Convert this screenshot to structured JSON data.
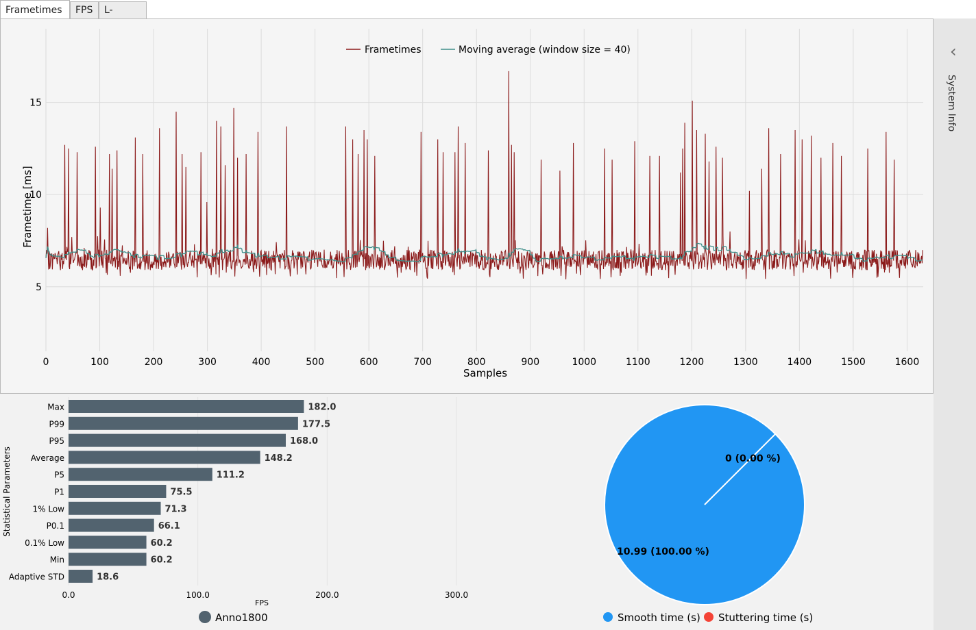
{
  "tabs": [
    {
      "label": "Frametimes",
      "active": true
    },
    {
      "label": "FPS",
      "active": false
    },
    {
      "label": "L-shape",
      "active": false
    }
  ],
  "sidebar": {
    "chevron": "‹",
    "label": "System Info"
  },
  "colors": {
    "frametimes": "#8b1a1a",
    "moving_avg": "#3f8f8a",
    "bar": "#52636f",
    "smooth": "#2196f3",
    "stutter": "#f44336"
  },
  "chart_data": [
    {
      "type": "line",
      "title": "",
      "xlabel": "Samples",
      "ylabel": "Frametime [ms]",
      "xlim": [
        0,
        1630
      ],
      "ylim": [
        1.5,
        19
      ],
      "xticks": [
        0,
        100,
        200,
        300,
        400,
        500,
        600,
        700,
        800,
        900,
        1000,
        1100,
        1200,
        1300,
        1400,
        1500,
        1600
      ],
      "yticks": [
        5,
        10,
        15
      ],
      "grid": true,
      "legend": {
        "position": "top-center",
        "entries": [
          "Frametimes",
          "Moving average (window size = 40)"
        ]
      },
      "series": [
        {
          "name": "Frametimes",
          "baseline": 6.4,
          "noise": 0.55,
          "min": 5.4,
          "spikes": [
            [
              3,
              8.2
            ],
            [
              35,
              12.7
            ],
            [
              42,
              12.5
            ],
            [
              48,
              7.7
            ],
            [
              58,
              12.3
            ],
            [
              92,
              12.6
            ],
            [
              101,
              9.3
            ],
            [
              118,
              12.2
            ],
            [
              123,
              11.4
            ],
            [
              132,
              12.4
            ],
            [
              166,
              13.1
            ],
            [
              180,
              12.2
            ],
            [
              211,
              13.6
            ],
            [
              242,
              14.5
            ],
            [
              253,
              12.2
            ],
            [
              260,
              11.5
            ],
            [
              288,
              12.3
            ],
            [
              299,
              9.6
            ],
            [
              317,
              14.0
            ],
            [
              325,
              13.7
            ],
            [
              333,
              11.6
            ],
            [
              349,
              14.7
            ],
            [
              356,
              12.0
            ],
            [
              372,
              12.2
            ],
            [
              394,
              13.4
            ],
            [
              447,
              13.7
            ],
            [
              557,
              13.7
            ],
            [
              570,
              13.0
            ],
            [
              580,
              12.2
            ],
            [
              591,
              13.5
            ],
            [
              597,
              13.0
            ],
            [
              611,
              12.1
            ],
            [
              648,
              7.2
            ],
            [
              697,
              13.4
            ],
            [
              728,
              13.0
            ],
            [
              738,
              12.3
            ],
            [
              760,
              12.3
            ],
            [
              766,
              13.7
            ],
            [
              779,
              12.8
            ],
            [
              822,
              12.4
            ],
            [
              860,
              16.7
            ],
            [
              865,
              12.7
            ],
            [
              870,
              12.3
            ],
            [
              920,
              11.9
            ],
            [
              955,
              11.3
            ],
            [
              980,
              12.8
            ],
            [
              1038,
              12.5
            ],
            [
              1052,
              11.9
            ],
            [
              1094,
              12.9
            ],
            [
              1122,
              12.1
            ],
            [
              1140,
              12.1
            ],
            [
              1179,
              11.2
            ],
            [
              1183,
              12.5
            ],
            [
              1187,
              13.9
            ],
            [
              1201,
              15.1
            ],
            [
              1209,
              13.5
            ],
            [
              1225,
              13.3
            ],
            [
              1232,
              11.8
            ],
            [
              1245,
              12.6
            ],
            [
              1257,
              12.0
            ],
            [
              1271,
              8.0
            ],
            [
              1307,
              10.2
            ],
            [
              1330,
              11.4
            ],
            [
              1343,
              13.6
            ],
            [
              1365,
              12.2
            ],
            [
              1392,
              13.5
            ],
            [
              1405,
              13.0
            ],
            [
              1422,
              13.2
            ],
            [
              1440,
              12.0
            ],
            [
              1462,
              12.8
            ],
            [
              1478,
              12.1
            ],
            [
              1527,
              12.5
            ],
            [
              1561,
              13.4
            ],
            [
              1576,
              11.9
            ]
          ]
        },
        {
          "name": "Moving average (window size = 40)",
          "window": 40
        }
      ]
    },
    {
      "type": "bar",
      "orientation": "horizontal",
      "ylabel": "Statistical Parameters",
      "xlabel": "FPS",
      "xlim": [
        0,
        300
      ],
      "xticks": [
        "0.0",
        "100.0",
        "200.0",
        "300.0"
      ],
      "legend": {
        "position": "bottom",
        "entries": [
          "Anno1800"
        ]
      },
      "categories": [
        "Max",
        "P99",
        "P95",
        "Average",
        "P5",
        "P1",
        "1% Low",
        "P0.1",
        "0.1% Low",
        "Min",
        "Adaptive STD"
      ],
      "values": [
        182.0,
        177.5,
        168.0,
        148.2,
        111.2,
        75.5,
        71.3,
        66.1,
        60.2,
        60.2,
        18.6
      ],
      "value_labels": [
        "182.0",
        "177.5",
        "168.0",
        "148.2",
        "111.2",
        "75.5",
        "71.3",
        "66.1",
        "60.2",
        "60.2",
        "18.6"
      ]
    },
    {
      "type": "pie",
      "legend": {
        "position": "bottom",
        "entries": [
          "Smooth time (s)",
          "Stuttering time (s)"
        ]
      },
      "slices": [
        {
          "label": "Smooth time (s)",
          "value": 10.99,
          "text": "10.99 (100.00 %)"
        },
        {
          "label": "Stuttering time (s)",
          "value": 0,
          "text": "0 (0.00 %)"
        }
      ]
    }
  ]
}
